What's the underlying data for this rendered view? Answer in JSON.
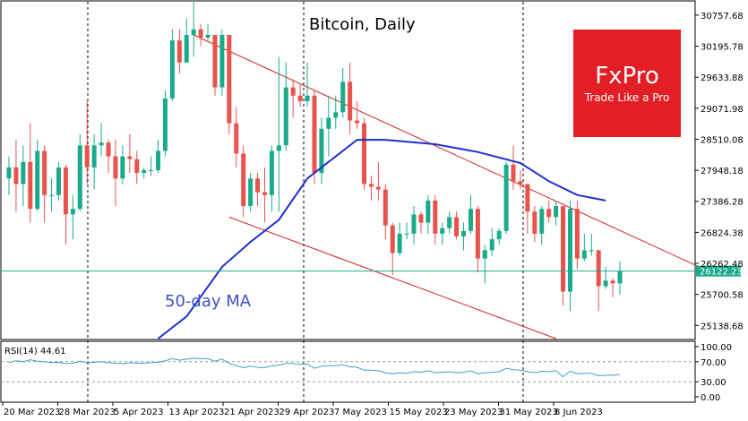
{
  "chart_data": {
    "type": "candlestick",
    "title": "Bitcoin, Daily",
    "annotation": "50-day MA",
    "brand": {
      "name": "FxPro",
      "tagline": "Trade Like a Pro",
      "color": "#e31e24"
    },
    "current_price": {
      "value": 26122.23,
      "label": "26122.23"
    },
    "y_ticks": [
      "30757.68",
      "30195.78",
      "29633.88",
      "29071.98",
      "28510.08",
      "27948.18",
      "27386.28",
      "26824.38",
      "26262.48",
      "25700.58",
      "25138.68"
    ],
    "x_ticks": [
      "20 Mar 2023",
      "28 Mar 2023",
      "5 Apr 2023",
      "13 Apr 2023",
      "21 Apr 2023",
      "29 Apr 2023",
      "7 May 2023",
      "15 May 2023",
      "23 May 2023",
      "31 May 2023",
      "8 Jun 2023"
    ],
    "ylim": [
      24900,
      31000
    ],
    "colors": {
      "up": "#1aab8b",
      "down": "#e8534c",
      "ma": "#1f2fd0",
      "channel": "#d62020",
      "price_line": "#1aab8b",
      "rsi": "#3aa0c8"
    },
    "candles": [
      {
        "d": "19 Mar",
        "o": 27800,
        "h": 28200,
        "l": 27500,
        "c": 28000
      },
      {
        "d": "20 Mar",
        "o": 28000,
        "h": 28500,
        "l": 27200,
        "c": 27700
      },
      {
        "d": "21 Mar",
        "o": 27700,
        "h": 28400,
        "l": 27300,
        "c": 28100
      },
      {
        "d": "22 Mar",
        "o": 28100,
        "h": 28800,
        "l": 27000,
        "c": 27250
      },
      {
        "d": "23 Mar",
        "o": 27250,
        "h": 28500,
        "l": 27200,
        "c": 28300
      },
      {
        "d": "24 Mar",
        "o": 28300,
        "h": 28400,
        "l": 27000,
        "c": 27500
      },
      {
        "d": "25 Mar",
        "o": 27500,
        "h": 27800,
        "l": 27200,
        "c": 27500
      },
      {
        "d": "26 Mar",
        "o": 27500,
        "h": 28100,
        "l": 27400,
        "c": 28000
      },
      {
        "d": "27 Mar",
        "o": 28000,
        "h": 28050,
        "l": 26600,
        "c": 27150
      },
      {
        "d": "28 Mar",
        "o": 27150,
        "h": 27500,
        "l": 26700,
        "c": 27250
      },
      {
        "d": "29 Mar",
        "o": 27250,
        "h": 28600,
        "l": 27200,
        "c": 28400
      },
      {
        "d": "30 Mar",
        "o": 28400,
        "h": 29200,
        "l": 27700,
        "c": 28000
      },
      {
        "d": "31 Mar",
        "o": 28000,
        "h": 28600,
        "l": 27600,
        "c": 28400
      },
      {
        "d": "1 Apr",
        "o": 28400,
        "h": 28800,
        "l": 28200,
        "c": 28450
      },
      {
        "d": "2 Apr",
        "o": 28450,
        "h": 28500,
        "l": 27900,
        "c": 28200
      },
      {
        "d": "3 Apr",
        "o": 28200,
        "h": 28500,
        "l": 27300,
        "c": 27800
      },
      {
        "d": "4 Apr",
        "o": 27800,
        "h": 28400,
        "l": 27700,
        "c": 28200
      },
      {
        "d": "5 Apr",
        "o": 28200,
        "h": 28600,
        "l": 27900,
        "c": 28150
      },
      {
        "d": "6 Apr",
        "o": 28150,
        "h": 28300,
        "l": 27700,
        "c": 27900
      },
      {
        "d": "7 Apr",
        "o": 27900,
        "h": 28000,
        "l": 27800,
        "c": 27950
      },
      {
        "d": "8 Apr",
        "o": 27950,
        "h": 28200,
        "l": 27850,
        "c": 27950
      },
      {
        "d": "9 Apr",
        "o": 27950,
        "h": 28500,
        "l": 27900,
        "c": 28300
      },
      {
        "d": "10 Apr",
        "o": 28300,
        "h": 29400,
        "l": 28200,
        "c": 29250
      },
      {
        "d": "11 Apr",
        "o": 29250,
        "h": 30500,
        "l": 29200,
        "c": 30300
      },
      {
        "d": "12 Apr",
        "o": 30300,
        "h": 30500,
        "l": 29700,
        "c": 29900
      },
      {
        "d": "13 Apr",
        "o": 29900,
        "h": 30700,
        "l": 29900,
        "c": 30400
      },
      {
        "d": "14 Apr",
        "o": 30400,
        "h": 31000,
        "l": 30000,
        "c": 30500
      },
      {
        "d": "15 Apr",
        "o": 30500,
        "h": 30600,
        "l": 30200,
        "c": 30350
      },
      {
        "d": "16 Apr",
        "o": 30350,
        "h": 30600,
        "l": 30300,
        "c": 30400
      },
      {
        "d": "17 Apr",
        "o": 30400,
        "h": 30400,
        "l": 29300,
        "c": 29450
      },
      {
        "d": "18 Apr",
        "o": 29450,
        "h": 30500,
        "l": 29300,
        "c": 30400
      },
      {
        "d": "19 Apr",
        "o": 30400,
        "h": 30400,
        "l": 28600,
        "c": 28800
      },
      {
        "d": "20 Apr",
        "o": 28800,
        "h": 29100,
        "l": 28000,
        "c": 28250
      },
      {
        "d": "21 Apr",
        "o": 28250,
        "h": 28400,
        "l": 27100,
        "c": 27300
      },
      {
        "d": "22 Apr",
        "o": 27300,
        "h": 27900,
        "l": 27200,
        "c": 27800
      },
      {
        "d": "23 Apr",
        "o": 27800,
        "h": 27900,
        "l": 27300,
        "c": 27550
      },
      {
        "d": "24 Apr",
        "o": 27550,
        "h": 28000,
        "l": 27000,
        "c": 27500
      },
      {
        "d": "25 Apr",
        "o": 27500,
        "h": 28400,
        "l": 27200,
        "c": 28300
      },
      {
        "d": "26 Apr",
        "o": 28300,
        "h": 30000,
        "l": 27200,
        "c": 28400
      },
      {
        "d": "27 Apr",
        "o": 28400,
        "h": 29900,
        "l": 28300,
        "c": 29450
      },
      {
        "d": "28 Apr",
        "o": 29450,
        "h": 29600,
        "l": 28900,
        "c": 29300
      },
      {
        "d": "29 Apr",
        "o": 29300,
        "h": 29500,
        "l": 29100,
        "c": 29200
      },
      {
        "d": "30 Apr",
        "o": 29200,
        "h": 29900,
        "l": 29100,
        "c": 29300
      },
      {
        "d": "1 May",
        "o": 29300,
        "h": 29400,
        "l": 27700,
        "c": 27900
      },
      {
        "d": "2 May",
        "o": 27900,
        "h": 28900,
        "l": 27700,
        "c": 28700
      },
      {
        "d": "3 May",
        "o": 28700,
        "h": 29300,
        "l": 28200,
        "c": 28900
      },
      {
        "d": "4 May",
        "o": 28900,
        "h": 29300,
        "l": 28700,
        "c": 29000
      },
      {
        "d": "5 May",
        "o": 29000,
        "h": 29800,
        "l": 28900,
        "c": 29550
      },
      {
        "d": "6 May",
        "o": 29550,
        "h": 29900,
        "l": 28600,
        "c": 28850
      },
      {
        "d": "7 May",
        "o": 28850,
        "h": 29200,
        "l": 28700,
        "c": 28800
      },
      {
        "d": "8 May",
        "o": 28800,
        "h": 28900,
        "l": 27600,
        "c": 27700
      },
      {
        "d": "9 May",
        "o": 27700,
        "h": 27850,
        "l": 27400,
        "c": 27650
      },
      {
        "d": "10 May",
        "o": 27650,
        "h": 28100,
        "l": 27400,
        "c": 27600
      },
      {
        "d": "11 May",
        "o": 27600,
        "h": 27700,
        "l": 26700,
        "c": 26950
      },
      {
        "d": "12 May",
        "o": 26950,
        "h": 27000,
        "l": 26050,
        "c": 26450
      },
      {
        "d": "13 May",
        "o": 26450,
        "h": 27000,
        "l": 26400,
        "c": 26800
      },
      {
        "d": "14 May",
        "o": 26800,
        "h": 27000,
        "l": 26700,
        "c": 26800
      },
      {
        "d": "15 May",
        "o": 26800,
        "h": 27300,
        "l": 26600,
        "c": 27150
      },
      {
        "d": "16 May",
        "o": 27150,
        "h": 27200,
        "l": 26800,
        "c": 27000
      },
      {
        "d": "17 May",
        "o": 27000,
        "h": 27500,
        "l": 26800,
        "c": 27400
      },
      {
        "d": "18 May",
        "o": 27400,
        "h": 27500,
        "l": 26600,
        "c": 26800
      },
      {
        "d": "19 May",
        "o": 26800,
        "h": 27000,
        "l": 26600,
        "c": 26900
      },
      {
        "d": "20 May",
        "o": 26900,
        "h": 27200,
        "l": 26800,
        "c": 27100
      },
      {
        "d": "21 May",
        "o": 27100,
        "h": 27200,
        "l": 26700,
        "c": 26750
      },
      {
        "d": "22 May",
        "o": 26750,
        "h": 27000,
        "l": 26500,
        "c": 26850
      },
      {
        "d": "23 May",
        "o": 26850,
        "h": 27500,
        "l": 26800,
        "c": 27250
      },
      {
        "d": "24 May",
        "o": 27250,
        "h": 27300,
        "l": 26100,
        "c": 26350
      },
      {
        "d": "25 May",
        "o": 26350,
        "h": 26600,
        "l": 25900,
        "c": 26500
      },
      {
        "d": "26 May",
        "o": 26500,
        "h": 26900,
        "l": 26400,
        "c": 26700
      },
      {
        "d": "27 May",
        "o": 26700,
        "h": 26900,
        "l": 26600,
        "c": 26850
      },
      {
        "d": "28 May",
        "o": 26850,
        "h": 28100,
        "l": 26800,
        "c": 28050
      },
      {
        "d": "29 May",
        "o": 28050,
        "h": 28400,
        "l": 27600,
        "c": 27750
      },
      {
        "d": "30 May",
        "o": 27750,
        "h": 27950,
        "l": 27600,
        "c": 27700
      },
      {
        "d": "31 May",
        "o": 27700,
        "h": 27700,
        "l": 26800,
        "c": 27200
      },
      {
        "d": "1 Jun",
        "o": 27200,
        "h": 27300,
        "l": 26650,
        "c": 26800
      },
      {
        "d": "2 Jun",
        "o": 26800,
        "h": 27300,
        "l": 26600,
        "c": 27250
      },
      {
        "d": "3 Jun",
        "o": 27250,
        "h": 27400,
        "l": 27000,
        "c": 27100
      },
      {
        "d": "4 Jun",
        "o": 27100,
        "h": 27400,
        "l": 26950,
        "c": 27300
      },
      {
        "d": "5 Jun",
        "o": 27300,
        "h": 27300,
        "l": 25500,
        "c": 25750
      },
      {
        "d": "6 Jun",
        "o": 25750,
        "h": 27400,
        "l": 25400,
        "c": 27250
      },
      {
        "d": "7 Jun",
        "o": 27250,
        "h": 27400,
        "l": 26150,
        "c": 26350
      },
      {
        "d": "8 Jun",
        "o": 26350,
        "h": 26800,
        "l": 26300,
        "c": 26500
      },
      {
        "d": "9 Jun",
        "o": 26500,
        "h": 26800,
        "l": 26400,
        "c": 26500
      },
      {
        "d": "10 Jun",
        "o": 26500,
        "h": 26500,
        "l": 25400,
        "c": 25850
      },
      {
        "d": "11 Jun",
        "o": 25850,
        "h": 26200,
        "l": 25800,
        "c": 25950
      },
      {
        "d": "12 Jun",
        "o": 25950,
        "h": 26000,
        "l": 25650,
        "c": 25900
      },
      {
        "d": "13 Jun",
        "o": 25900,
        "h": 26300,
        "l": 25700,
        "c": 26122
      }
    ],
    "ma_50": [
      {
        "i": 21,
        "v": 24900
      },
      {
        "i": 25,
        "v": 25300
      },
      {
        "i": 30,
        "v": 26200
      },
      {
        "i": 34,
        "v": 26650
      },
      {
        "i": 38,
        "v": 27050
      },
      {
        "i": 42,
        "v": 27800
      },
      {
        "i": 46,
        "v": 28200
      },
      {
        "i": 49,
        "v": 28500
      },
      {
        "i": 53,
        "v": 28500
      },
      {
        "i": 60,
        "v": 28420
      },
      {
        "i": 66,
        "v": 28280
      },
      {
        "i": 72,
        "v": 28080
      },
      {
        "i": 76,
        "v": 27750
      },
      {
        "i": 80,
        "v": 27500
      },
      {
        "i": 84,
        "v": 27400
      }
    ],
    "channel_upper": [
      {
        "i": 26,
        "v": 30400
      },
      {
        "i": 98,
        "v": 26150
      }
    ],
    "channel_lower": [
      {
        "i": 31,
        "v": 27100
      },
      {
        "i": 77,
        "v": 24900
      }
    ],
    "rsi": {
      "label": "RSI(14) 44.61",
      "y_ticks": [
        "100.00",
        "70.00",
        "30.00",
        "0.00"
      ],
      "levels": [
        100,
        70,
        30,
        0
      ],
      "values": [
        68,
        72,
        70,
        74,
        71,
        70,
        68,
        69,
        66,
        67,
        71,
        68,
        69,
        70,
        68,
        67,
        66,
        68,
        67,
        67,
        68,
        69,
        72,
        76,
        73,
        75,
        77,
        76,
        76,
        71,
        75,
        67,
        62,
        58,
        61,
        59,
        58,
        62,
        63,
        67,
        66,
        65,
        65,
        57,
        61,
        62,
        62,
        64,
        60,
        59,
        53,
        53,
        52,
        48,
        46,
        48,
        47,
        50,
        49,
        52,
        48,
        49,
        50,
        48,
        49,
        52,
        46,
        48,
        49,
        50,
        57,
        54,
        53,
        50,
        48,
        51,
        50,
        52,
        40,
        51,
        46,
        47,
        47,
        42,
        43,
        43,
        44.61
      ]
    }
  }
}
